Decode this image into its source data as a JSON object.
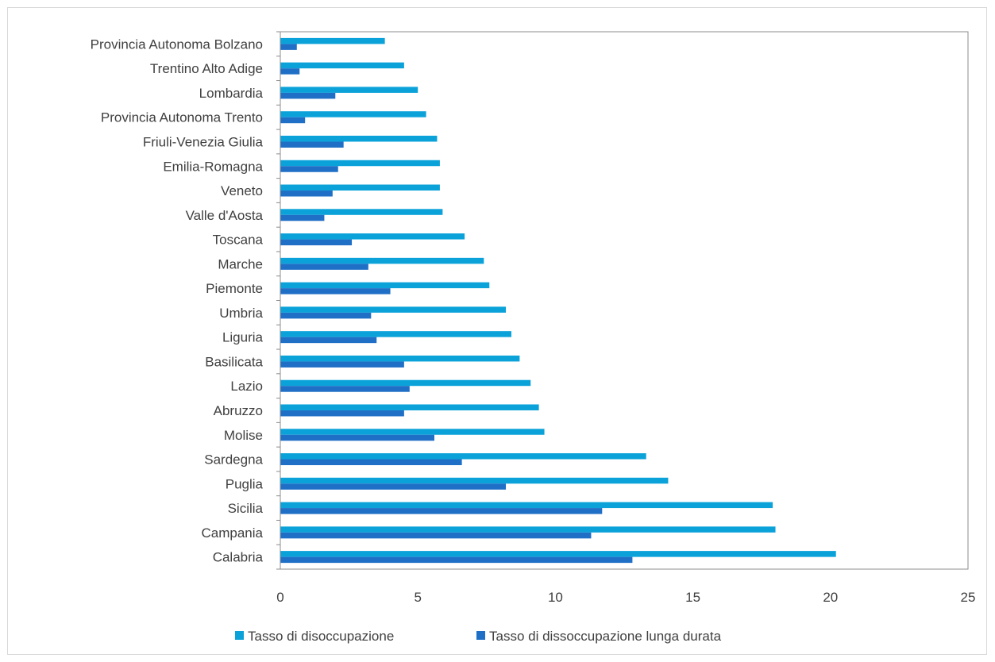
{
  "colors": {
    "series_1": "#0BA2D9",
    "series_2": "#1F6FC6",
    "axis": "#8c8c8c",
    "frame": "#d9d9d9",
    "text": "#404040"
  },
  "chart_data": {
    "type": "bar",
    "orientation": "horizontal",
    "title": "",
    "xlabel": "",
    "ylabel": "",
    "xlim": [
      0,
      25
    ],
    "x_ticks": [
      0,
      5,
      10,
      15,
      20,
      25
    ],
    "grid": false,
    "legend_position": "bottom",
    "categories": [
      "Provincia Autonoma Bolzano",
      "Trentino Alto Adige",
      "Lombardia",
      "Provincia Autonoma Trento",
      "Friuli-Venezia Giulia",
      "Emilia-Romagna",
      "Veneto",
      "Valle d'Aosta",
      "Toscana",
      "Marche",
      "Piemonte",
      "Umbria",
      "Liguria",
      "Basilicata",
      "Lazio",
      "Abruzzo",
      "Molise",
      "Sardegna",
      "Puglia",
      "Sicilia",
      "Campania",
      "Calabria"
    ],
    "series": [
      {
        "name": "Tasso di disoccupazione",
        "values": [
          3.8,
          4.5,
          5.0,
          5.3,
          5.7,
          5.8,
          5.8,
          5.9,
          6.7,
          7.4,
          7.6,
          8.2,
          8.4,
          8.7,
          9.1,
          9.4,
          9.6,
          13.3,
          14.1,
          17.9,
          18.0,
          20.2
        ]
      },
      {
        "name": "Tasso di dissoccupazione lunga durata",
        "values": [
          0.6,
          0.7,
          2.0,
          0.9,
          2.3,
          2.1,
          1.9,
          1.6,
          2.6,
          3.2,
          4.0,
          3.3,
          3.5,
          4.5,
          4.7,
          4.5,
          5.6,
          6.6,
          8.2,
          11.7,
          11.3,
          12.8
        ]
      }
    ]
  }
}
